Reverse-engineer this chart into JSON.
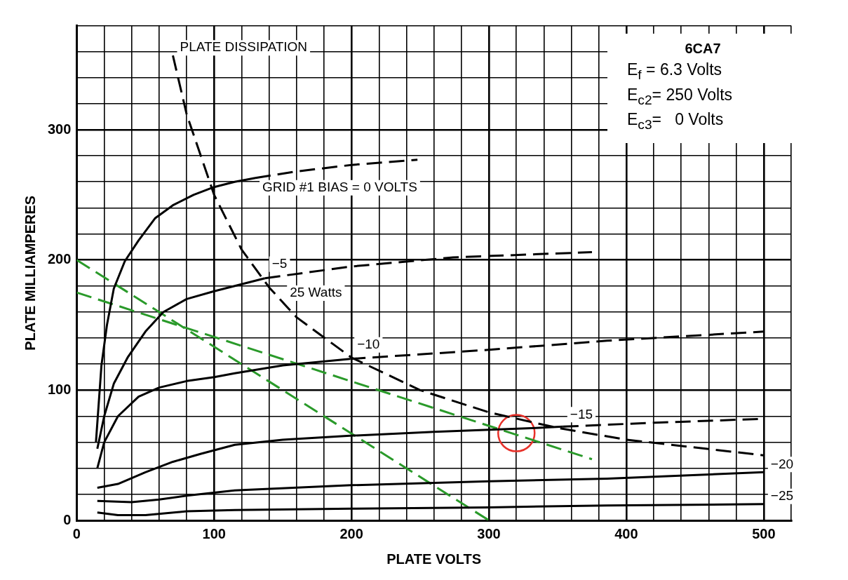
{
  "chart_data": {
    "type": "line",
    "title": "6CA7",
    "xlabel": "PLATE VOLTS",
    "ylabel": "PLATE MILLIAMPERES",
    "annotations": [
      "E$_{f}$ = 6.3 Volts",
      "E$_{c2}$= 250 Volts",
      "E$_{c3}$=   0 Volts",
      {
        "text": "25 Watts",
        "x": 150,
        "y": 167
      }
    ],
    "xlim": [
      0,
      520
    ],
    "ylim": [
      0,
      380
    ],
    "xticks": [
      0,
      {
        "value": 20,
        "label": null
      },
      {
        "value": 40,
        "label": null
      },
      {
        "value": 60,
        "label": null
      },
      {
        "value": 80,
        "label": null
      },
      100,
      {
        "value": 120,
        "label": null
      },
      {
        "value": 140,
        "label": null
      },
      {
        "value": 160,
        "label": null
      },
      {
        "value": 180,
        "label": null
      },
      200,
      {
        "value": 220,
        "label": null
      },
      {
        "value": 240,
        "label": null
      },
      {
        "value": 260,
        "label": null
      },
      {
        "value": 280,
        "label": null
      },
      300,
      {
        "value": 320,
        "label": null
      },
      {
        "value": 340,
        "label": null
      },
      {
        "value": 360,
        "label": null
      },
      {
        "value": 380,
        "label": null
      },
      400,
      {
        "value": 420,
        "label": null
      },
      {
        "value": 440,
        "label": null
      },
      {
        "value": 460,
        "label": null
      },
      {
        "value": 480,
        "label": null
      },
      500,
      {
        "value": 520,
        "label": null
      }
    ],
    "yticks": [
      0,
      {
        "value": 20,
        "label": null
      },
      {
        "value": 40,
        "label": null
      },
      {
        "value": 60,
        "label": null
      },
      {
        "value": 80,
        "label": null
      },
      100,
      {
        "value": 120,
        "label": null
      },
      {
        "value": 140,
        "label": null
      },
      {
        "value": 160,
        "label": null
      },
      {
        "value": 180,
        "label": null
      },
      200,
      {
        "value": 220,
        "label": null
      },
      {
        "value": 240,
        "label": null
      },
      {
        "value": 260,
        "label": null
      },
      {
        "value": 280,
        "label": null
      },
      300,
      {
        "value": 320,
        "label": null
      },
      {
        "value": 340,
        "label": null
      },
      {
        "value": 360,
        "label": null
      },
      {
        "value": 380,
        "label": null
      }
    ],
    "grid": true,
    "legend": false,
    "marker": "none",
    "series": [
      {
        "name": "GRID #1 BIAS = 0 VOLTS",
        "color": "#000000",
        "line_style": "solid",
        "x": [
          14,
          18,
          22,
          27,
          35,
          45,
          57,
          70,
          85,
          100,
          115,
          130
        ],
        "values": [
          60,
          119,
          150,
          178,
          199,
          215,
          232,
          242,
          250,
          256,
          260,
          263
        ]
      },
      {
        "color": "#000000",
        "line_style": "dashed",
        "x": [
          130,
          160,
          200,
          248
        ],
        "values": [
          263,
          268,
          273,
          277
        ]
      },
      {
        "name": "−5",
        "color": "#000000",
        "line_style": "solid",
        "x": [
          15,
          20,
          27,
          37,
          50,
          63,
          80,
          100,
          115,
          137
        ],
        "values": [
          55,
          80,
          105,
          125,
          145,
          160,
          170,
          176,
          180,
          186
        ]
      },
      {
        "color": "#000000",
        "line_style": "dashed",
        "x": [
          137,
          200,
          274,
          375
        ],
        "values": [
          186,
          195,
          202,
          206
        ]
      },
      {
        "name": "−10",
        "color": "#000000",
        "line_style": "solid",
        "x": [
          15,
          20,
          30,
          45,
          60,
          80,
          100,
          115,
          150,
          199
        ],
        "values": [
          40,
          60,
          80,
          95,
          102,
          107,
          110,
          113,
          119,
          124
        ]
      },
      {
        "color": "#000000",
        "line_style": "dashed",
        "x": [
          199,
          300,
          386,
          500
        ],
        "values": [
          124,
          131,
          138,
          145
        ]
      },
      {
        "name": "−15",
        "color": "#000000",
        "line_style": "solid",
        "x": [
          15,
          30,
          50,
          70,
          90,
          115,
          150,
          199,
          260,
          334,
          354
        ],
        "values": [
          25,
          28,
          37,
          45,
          51,
          58,
          62,
          65,
          68,
          71,
          72
        ]
      },
      {
        "color": "#000000",
        "line_style": "dashed",
        "x": [
          354,
          420,
          500
        ],
        "values": [
          72,
          75,
          78
        ]
      },
      {
        "name": "−20",
        "color": "#000000",
        "line_style": "solid",
        "x": [
          15,
          40,
          60,
          80,
          115,
          200,
          300,
          386,
          500
        ],
        "values": [
          15,
          14,
          16,
          19,
          23,
          27,
          30,
          32,
          37
        ]
      },
      {
        "name": "−25",
        "color": "#000000",
        "line_style": "solid",
        "x": [
          15,
          30,
          50,
          80,
          115,
          200,
          300,
          386,
          500
        ],
        "values": [
          6,
          4,
          4,
          7,
          8,
          9,
          10,
          11.5,
          12.5
        ]
      },
      {
        "name": "PLATE DISSIPATION",
        "color": "#000000",
        "line_style": "dashed",
        "x": [
          70,
          80,
          100,
          120,
          140,
          160,
          200,
          250,
          300,
          350,
          400,
          450,
          500
        ],
        "values": [
          357,
          312,
          250,
          208,
          179,
          156,
          125,
          100,
          83,
          71,
          62,
          56,
          50
        ]
      },
      {
        "color": "#2a9a2a",
        "line_style": "dashed",
        "x": [
          0,
          300
        ],
        "values": [
          200,
          0
        ]
      },
      {
        "color": "#2a9a2a",
        "line_style": "dashed",
        "x": [
          0,
          375
        ],
        "values": [
          175,
          47
        ]
      },
      {
        "type": "scatter",
        "marker": "circle",
        "color": "#e8312a",
        "x": [
          320
        ],
        "values": [
          67
        ]
      }
    ]
  }
}
